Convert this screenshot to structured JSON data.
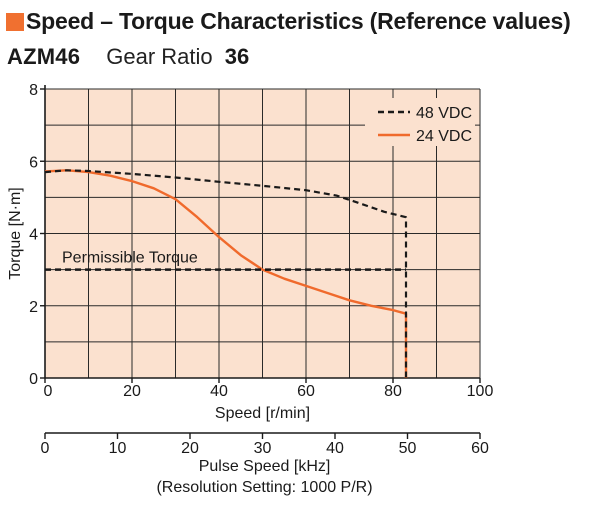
{
  "header": {
    "title": "Speed – Torque Characteristics (Reference values)",
    "model": "AZM46",
    "ratio_label": "Gear Ratio",
    "ratio_value": "36"
  },
  "colors": {
    "accent": "#f07030",
    "plot_bg": "#fbe1cf",
    "series_48": "#1a1a1a",
    "series_24": "#f06a2c"
  },
  "chart_data": {
    "type": "line",
    "x": {
      "label": "Speed [r/min]",
      "lim": [
        0,
        100
      ],
      "ticks": [
        0,
        20,
        40,
        60,
        80,
        100
      ]
    },
    "y": {
      "label": "Torque [N·m]",
      "lim": [
        0,
        8
      ],
      "ticks": [
        0,
        2,
        4,
        6,
        8
      ]
    },
    "secondary_x": {
      "label": "Pulse Speed [kHz]",
      "note": "(Resolution Setting: 1000 P/R)",
      "lim": [
        0,
        60
      ],
      "ticks": [
        0,
        10,
        20,
        30,
        40,
        50,
        60
      ]
    },
    "grid": true,
    "legend_position": "top-right",
    "series": [
      {
        "name": "48 VDC",
        "style": "dashed",
        "points": [
          [
            0,
            5.7
          ],
          [
            5,
            5.75
          ],
          [
            10,
            5.73
          ],
          [
            20,
            5.65
          ],
          [
            30,
            5.55
          ],
          [
            40,
            5.43
          ],
          [
            50,
            5.32
          ],
          [
            60,
            5.2
          ],
          [
            67,
            5.05
          ],
          [
            72,
            4.85
          ],
          [
            78,
            4.6
          ],
          [
            83,
            4.45
          ],
          [
            83,
            0
          ]
        ]
      },
      {
        "name": "24 VDC",
        "style": "solid",
        "points": [
          [
            0,
            5.72
          ],
          [
            5,
            5.75
          ],
          [
            10,
            5.7
          ],
          [
            15,
            5.6
          ],
          [
            20,
            5.45
          ],
          [
            25,
            5.25
          ],
          [
            30,
            4.95
          ],
          [
            35,
            4.45
          ],
          [
            40,
            3.9
          ],
          [
            45,
            3.4
          ],
          [
            50,
            3.0
          ],
          [
            55,
            2.75
          ],
          [
            60,
            2.55
          ],
          [
            65,
            2.35
          ],
          [
            70,
            2.15
          ],
          [
            75,
            2.0
          ],
          [
            80,
            1.88
          ],
          [
            83,
            1.78
          ],
          [
            83,
            0
          ]
        ]
      }
    ],
    "annotations": [
      {
        "text": "Permissible Torque",
        "style": "dashed",
        "y": 3,
        "x_range": [
          0,
          83
        ]
      }
    ]
  }
}
